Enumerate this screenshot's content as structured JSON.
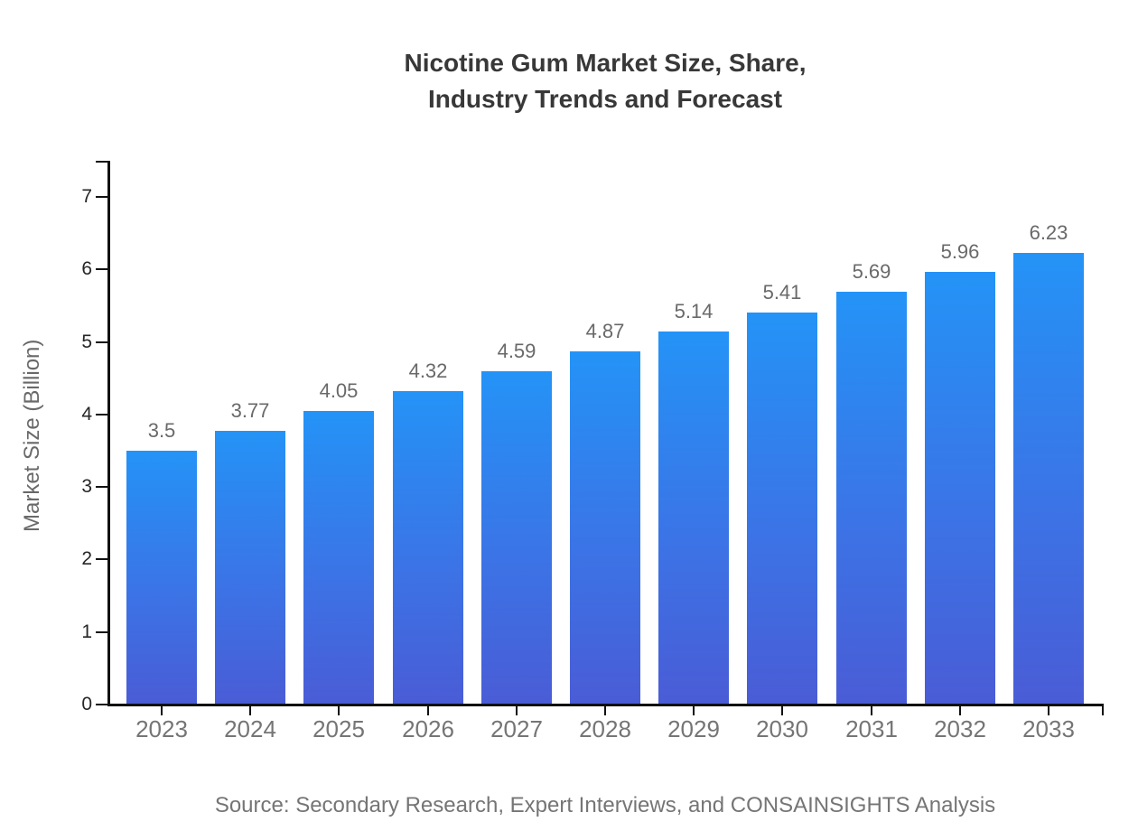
{
  "header": {
    "title_line1": "Nicotine Gum Market Size, Share,",
    "title_line2": "Industry Trends and Forecast"
  },
  "chart_data": {
    "type": "bar",
    "title": "Nicotine Gum Market Size, Share, Industry Trends and Forecast",
    "categories": [
      "2023",
      "2024",
      "2025",
      "2026",
      "2027",
      "2028",
      "2029",
      "2030",
      "2031",
      "2032",
      "2033"
    ],
    "values": [
      3.5,
      3.77,
      4.05,
      4.32,
      4.59,
      4.87,
      5.14,
      5.41,
      5.69,
      5.96,
      6.23
    ],
    "value_labels": [
      "3.5",
      "3.77",
      "4.05",
      "4.32",
      "4.59",
      "4.87",
      "5.14",
      "5.41",
      "5.69",
      "5.96",
      "6.23"
    ],
    "xlabel": "",
    "ylabel": "Market Size (Billion)",
    "yticks": [
      0,
      1,
      2,
      3,
      4,
      5,
      6,
      7
    ],
    "ylim": [
      0,
      7.5
    ],
    "grid": false,
    "legend_position": "none",
    "colors": {
      "bar_gradient_top": "#2493F7",
      "bar_gradient_bottom": "#4A5CD6",
      "axis": "#111111",
      "ytick_label": "#262626",
      "xtick_label": "#757575",
      "value_label": "#696969",
      "title": "#383838",
      "source": "#757575"
    }
  },
  "footer": {
    "source": "Source: Secondary Research, Expert Interviews, and CONSAINSIGHTS Analysis"
  }
}
